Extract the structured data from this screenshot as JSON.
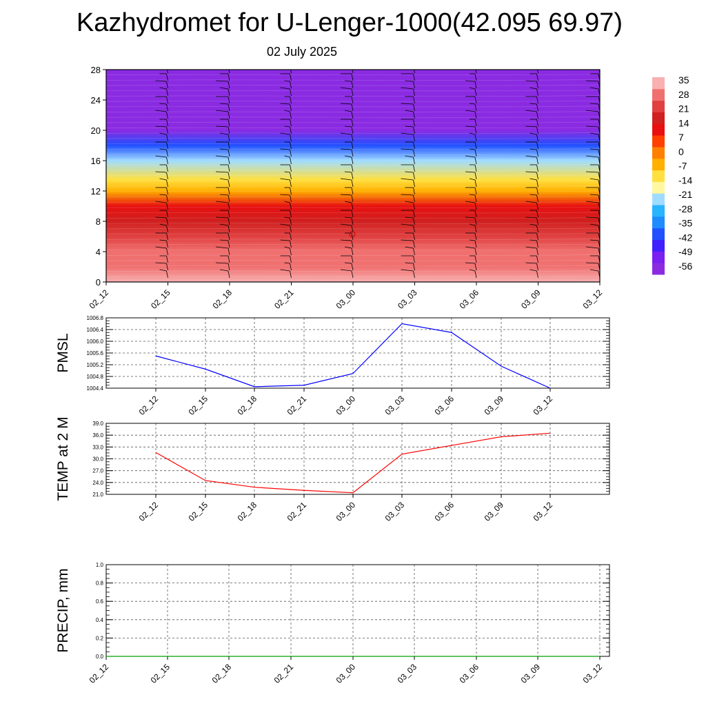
{
  "title": "Kazhydromet for U-Lenger-1000(42.095 69.97)",
  "subtitle": "02 July 2025",
  "colors": {
    "pmsl_line": "#0000ff",
    "temp_line": "#ff0000",
    "precip_line": "#00a000",
    "grid": "#555555",
    "colorbar": [
      "#8a2be2",
      "#7a20f0",
      "#4020ff",
      "#2050ff",
      "#1e8cff",
      "#28b4ff",
      "#a0dcff",
      "#fff8a0",
      "#ffe040",
      "#ffb000",
      "#ff8000",
      "#ff4000",
      "#e81010",
      "#d02020",
      "#e04040",
      "#f07070",
      "#f8b0b0"
    ]
  },
  "chart_data": [
    {
      "type": "heatmap",
      "x": [
        "02_12",
        "02_15",
        "02_18",
        "02_21",
        "03_00",
        "03_03",
        "03_06",
        "03_09",
        "03_12"
      ],
      "ylim": [
        0,
        28
      ],
      "yticks": [
        "0",
        "4",
        "8",
        "12",
        "16",
        "20",
        "24",
        "28"
      ],
      "colorbar_labels": [
        "35",
        "28",
        "21",
        "14",
        "7",
        "0",
        "-7",
        "-14",
        "-21",
        "-28",
        "-35",
        "-42",
        "-49",
        "-56"
      ],
      "colorbar_range": [
        -60,
        36
      ],
      "bands": [
        {
          "y": 0,
          "value": 33
        },
        {
          "y": 2,
          "value": 29
        },
        {
          "y": 4,
          "value": 25
        },
        {
          "y": 6,
          "value": 22
        },
        {
          "y": 8,
          "value": 18
        },
        {
          "y": 10,
          "value": 8
        },
        {
          "y": 12,
          "value": -4
        },
        {
          "y": 13.5,
          "value": -14
        },
        {
          "y": 16,
          "value": -26
        },
        {
          "y": 18,
          "value": -40
        },
        {
          "y": 20,
          "value": -56
        },
        {
          "y": 22,
          "value": -58
        },
        {
          "y": 28,
          "value": -59
        }
      ],
      "grid": false,
      "wind_barbs": true
    },
    {
      "type": "line",
      "ylabel": "PMSL",
      "x": [
        "02_12",
        "02_15",
        "02_18",
        "02_21",
        "03_00",
        "03_03",
        "03_06",
        "03_09",
        "03_12"
      ],
      "values": [
        1005.5,
        1005.05,
        1004.45,
        1004.5,
        1004.9,
        1006.6,
        1006.3,
        1005.15,
        1004.4
      ],
      "ylim": [
        1004.4,
        1006.8
      ],
      "yticks": [
        "1004.4",
        "1004.8",
        "1005.2",
        "1005.6",
        "1006.0",
        "1006.4",
        "1006.8"
      ],
      "grid": true
    },
    {
      "type": "line",
      "ylabel": "TEMP at 2 M",
      "x": [
        "02_12",
        "02_15",
        "02_18",
        "02_21",
        "03_00",
        "03_03",
        "03_06",
        "03_09",
        "03_12"
      ],
      "values": [
        31.6,
        24.5,
        22.8,
        22.0,
        21.4,
        31.2,
        33.4,
        35.6,
        36.5
      ],
      "ylim": [
        21.0,
        39.0
      ],
      "yticks": [
        "21.0",
        "24.0",
        "27.0",
        "30.0",
        "33.0",
        "36.0",
        "39.0"
      ],
      "grid": true
    },
    {
      "type": "line",
      "ylabel": "PRECIP, mm",
      "x": [
        "02_12",
        "02_15",
        "02_18",
        "02_21",
        "03_00",
        "03_03",
        "03_06",
        "03_09",
        "03_12"
      ],
      "values": [
        0,
        0,
        0,
        0,
        0,
        0,
        0,
        0,
        0
      ],
      "ylim": [
        0.0,
        1.0
      ],
      "yticks": [
        "0.0",
        "0.2",
        "0.4",
        "0.6",
        "0.8",
        "1.0"
      ],
      "grid": true
    }
  ]
}
